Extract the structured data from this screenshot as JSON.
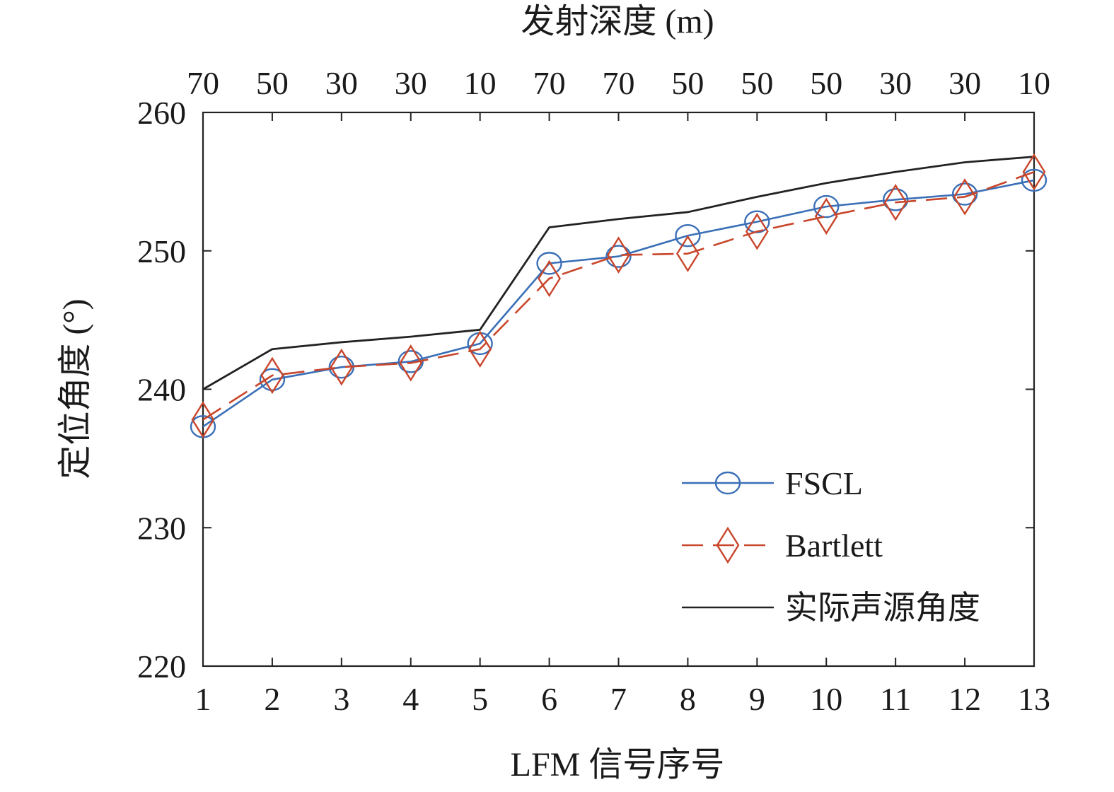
{
  "chart_data": {
    "type": "line",
    "xlabel": "LFM 信号序号",
    "ylabel": "定位角度 (°)",
    "top_axis_label": "发射深度 (m)",
    "x": [
      1,
      2,
      3,
      4,
      5,
      6,
      7,
      8,
      9,
      10,
      11,
      12,
      13
    ],
    "x_tick_labels": [
      "1",
      "2",
      "3",
      "4",
      "5",
      "6",
      "7",
      "8",
      "9",
      "10",
      "11",
      "12",
      "13"
    ],
    "top_tick_labels": [
      "70",
      "50",
      "30",
      "30",
      "10",
      "70",
      "70",
      "50",
      "50",
      "50",
      "30",
      "30",
      "10"
    ],
    "ylim": [
      220,
      260
    ],
    "y_ticks": [
      220,
      230,
      240,
      250,
      260
    ],
    "y_tick_labels": [
      "220",
      "230",
      "240",
      "250",
      "260"
    ],
    "grid": false,
    "legend_position": "bottom-right",
    "series": [
      {
        "name": "FSCL",
        "color": "#3a6fb7",
        "line_style": "solid",
        "marker": "circle",
        "values": [
          237.3,
          240.7,
          241.6,
          242.0,
          243.3,
          249.1,
          249.6,
          251.1,
          252.1,
          253.2,
          253.7,
          254.1,
          255.1
        ]
      },
      {
        "name": "Bartlett",
        "color": "#c8462b",
        "line_style": "dashed",
        "marker": "diamond",
        "values": [
          237.8,
          241.0,
          241.6,
          241.9,
          242.9,
          248.0,
          249.7,
          249.8,
          251.4,
          252.5,
          253.5,
          253.9,
          255.7
        ]
      },
      {
        "name": "实际声源角度",
        "color": "#222222",
        "line_style": "solid",
        "marker": "none",
        "values": [
          240.0,
          242.9,
          243.4,
          243.8,
          244.3,
          251.7,
          252.3,
          252.8,
          253.9,
          254.9,
          255.7,
          256.4,
          256.8
        ]
      }
    ]
  }
}
